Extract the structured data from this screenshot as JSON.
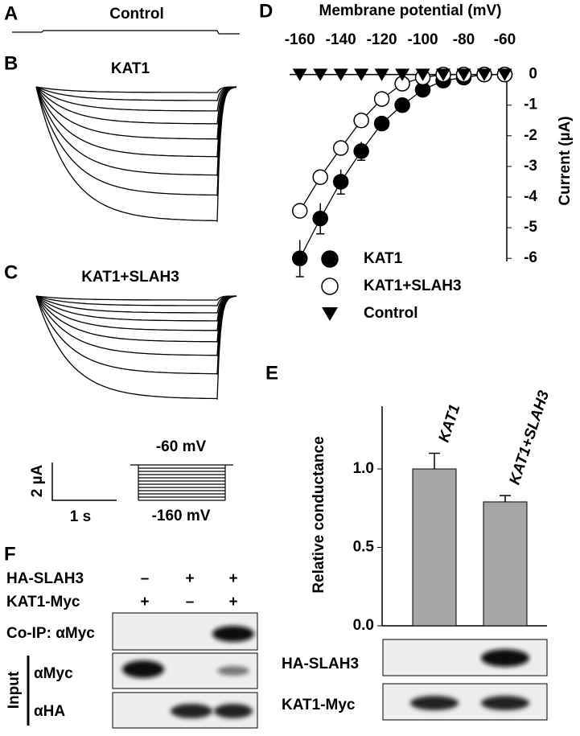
{
  "traces": [
    {
      "label": "A",
      "title": "Control"
    },
    {
      "label": "B",
      "title": "KAT1"
    },
    {
      "label": "C",
      "title": "KAT1+SLAH3"
    }
  ],
  "scale": {
    "current": "2 µA",
    "time": "1 s"
  },
  "protocol": {
    "top": "-60 mV",
    "bottom": "-160 mV"
  },
  "blot_panel": {
    "label": "F",
    "rows": [
      {
        "name": "HA-SLAH3",
        "lanes": [
          "–",
          "+",
          "+"
        ]
      },
      {
        "name": "KAT1-Myc",
        "lanes": [
          "+",
          "–",
          "+"
        ]
      }
    ],
    "coip": "Co-IP: αMyc",
    "input_label": "Input",
    "input_blots": [
      "αMyc",
      "αHA"
    ]
  },
  "chart_data": [
    {
      "type": "line",
      "panel_label": "D",
      "x_label": "Membrane potential (mV)",
      "y_label": "Current (µA)",
      "x": [
        -160,
        -150,
        -140,
        -130,
        -120,
        -110,
        -100,
        -90,
        -80,
        -70,
        -60
      ],
      "series": [
        {
          "name": "KAT1",
          "color": "#000000",
          "marker": "filled-circle",
          "values": [
            -6.0,
            -4.7,
            -3.5,
            -2.5,
            -1.6,
            -1.0,
            -0.5,
            -0.2,
            -0.1,
            0,
            0
          ],
          "errors": [
            0.6,
            0.5,
            0.4,
            0.3,
            0.2,
            0.1,
            0.1,
            0.05,
            0.05,
            0.02,
            0.02
          ]
        },
        {
          "name": "KAT1+SLAH3",
          "color": "#000000",
          "marker": "open-circle",
          "values": [
            -4.45,
            -3.35,
            -2.4,
            -1.5,
            -0.8,
            -0.3,
            -0.1,
            0,
            0,
            0,
            0
          ]
        },
        {
          "name": "Control",
          "color": "#000000",
          "marker": "triangle-down",
          "values": [
            0,
            0,
            0,
            0,
            0,
            0,
            0,
            0,
            0,
            0,
            0
          ]
        }
      ],
      "xlim": [
        -165,
        -59
      ],
      "xticks": [
        -160,
        -140,
        -120,
        -100,
        -80,
        -60
      ],
      "ylim": [
        -6.1,
        0.2
      ],
      "yticks": [
        0,
        -1,
        -2,
        -3,
        -4,
        -5,
        -6
      ]
    },
    {
      "type": "bar",
      "panel_label": "E",
      "y_label": "Relative conductance",
      "categories": [
        "KAT1",
        "KAT1+SLAH3"
      ],
      "values": [
        1.0,
        0.79
      ],
      "errors": [
        0.1,
        0.04
      ],
      "color": "#a6a6a6",
      "ylim": [
        0,
        1.4
      ],
      "yticks": [
        {
          "value": 0,
          "label": "0.0"
        },
        0.5,
        {
          "value": 1,
          "label": "1.0"
        }
      ],
      "blot_labels": [
        "HA-SLAH3",
        "KAT1-Myc"
      ]
    }
  ]
}
